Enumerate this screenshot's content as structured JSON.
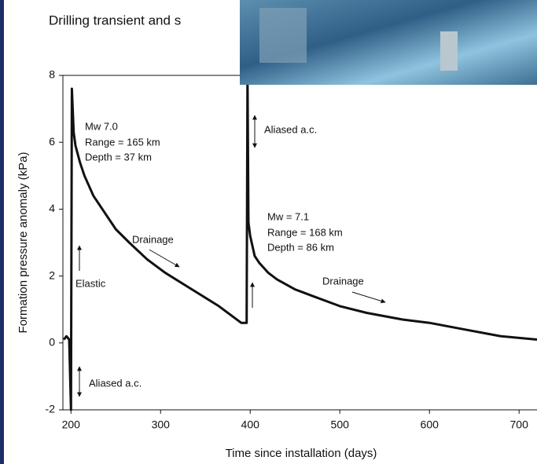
{
  "chart_data": {
    "type": "line",
    "title": "Drilling transient and s",
    "x_label": "Time since installation (days)",
    "y_label": "Formation pressure anomaly (kPa)",
    "x": [
      192,
      195,
      198,
      200,
      201,
      203,
      205,
      210,
      215,
      225,
      235,
      250,
      265,
      285,
      305,
      335,
      365,
      390,
      396,
      397,
      398,
      400,
      405,
      410,
      420,
      430,
      450,
      470,
      500,
      530,
      570,
      600,
      640,
      680,
      720
    ],
    "series": [
      {
        "color": "#111111",
        "values": [
          0.1,
          0.2,
          0.1,
          -2,
          7.6,
          6.3,
          5.9,
          5.4,
          5.0,
          4.4,
          4.0,
          3.4,
          3.0,
          2.5,
          2.1,
          1.6,
          1.1,
          0.6,
          0.6,
          8.0,
          3.6,
          3.2,
          2.6,
          2.4,
          2.1,
          1.9,
          1.6,
          1.4,
          1.1,
          0.9,
          0.7,
          0.6,
          0.4,
          0.2,
          0.1
        ]
      }
    ],
    "xlim": [
      191,
      720
    ],
    "xticks": [
      200,
      300,
      400,
      500,
      600,
      700
    ],
    "ylim": [
      -2,
      8
    ],
    "yticks": [
      -2,
      0,
      2,
      4,
      6,
      8
    ],
    "annotations": [
      "Mw 7.0",
      "Range = 165 km",
      "Depth = 37 km",
      "Elastic",
      "Aliased a.c.",
      "Drainage",
      "Aliased a.c.",
      "Mw = 7.1",
      "Range = 168 km",
      "Depth = 86 km",
      "Drainage"
    ]
  }
}
